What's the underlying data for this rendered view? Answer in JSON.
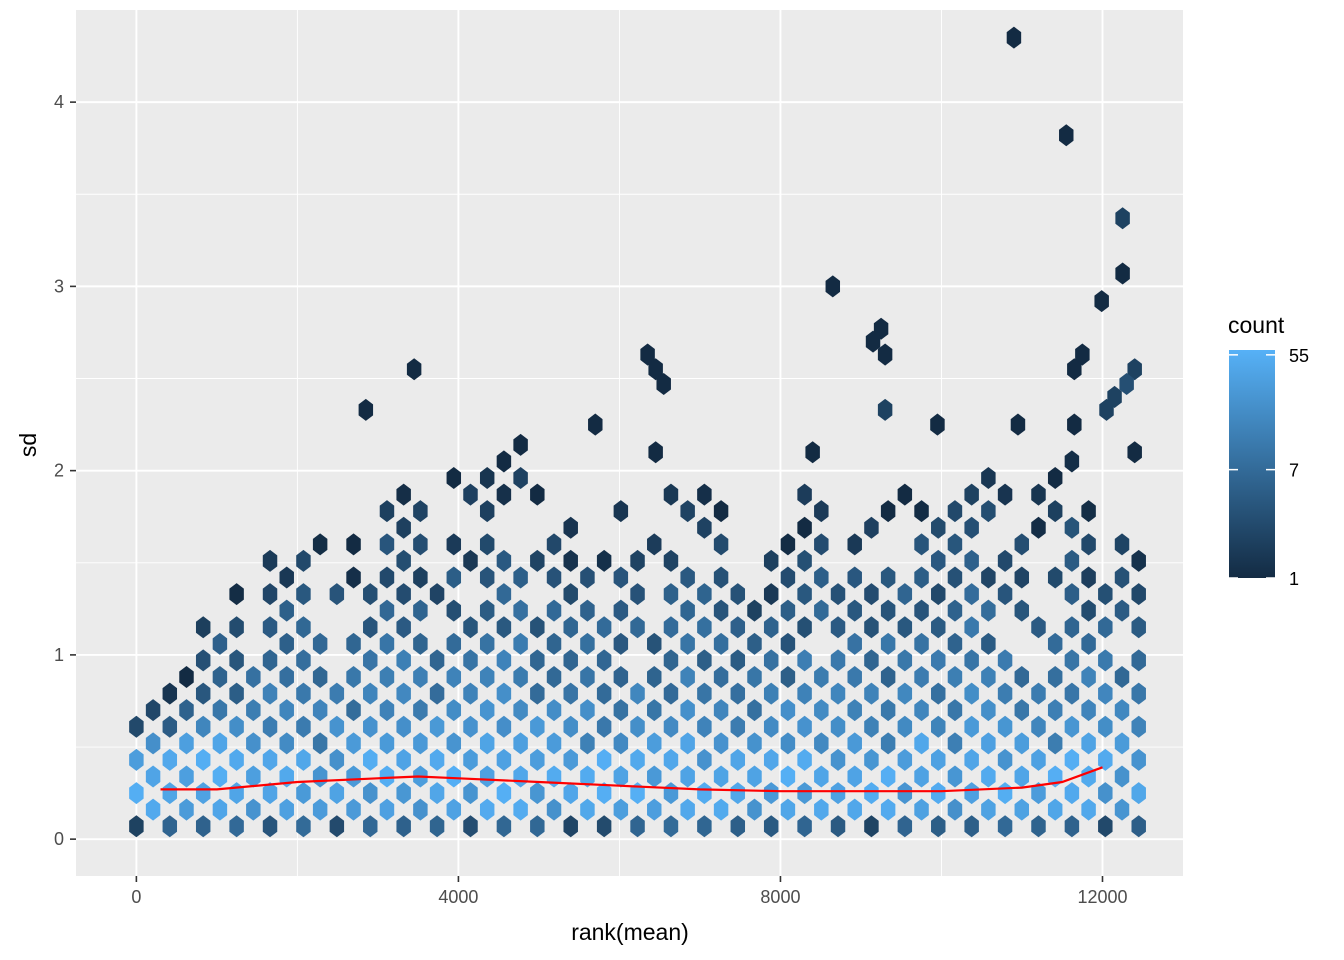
{
  "chart_data": {
    "type": "hexbin",
    "xlabel": "rank(mean)",
    "ylabel": "sd",
    "xlim": [
      -750,
      13000
    ],
    "ylim": [
      -0.2,
      4.5
    ],
    "x_ticks": [
      0,
      4000,
      8000,
      12000
    ],
    "y_ticks": [
      0,
      1,
      2,
      3,
      4
    ],
    "grid": true,
    "legend": {
      "title": "count",
      "placement": "right",
      "ticks": [
        {
          "value": 1,
          "label": "1"
        },
        {
          "value": 7,
          "label": "7"
        },
        {
          "value": 55,
          "label": "55"
        }
      ],
      "scale": "log",
      "range": [
        1,
        60
      ],
      "color_low": "#132B43",
      "color_high": "#56B1F7"
    },
    "trend_line": {
      "color": "#FF0000",
      "points": [
        [
          300,
          0.27
        ],
        [
          1000,
          0.27
        ],
        [
          2000,
          0.31
        ],
        [
          3000,
          0.33
        ],
        [
          3500,
          0.34
        ],
        [
          4000,
          0.33
        ],
        [
          5000,
          0.31
        ],
        [
          6000,
          0.29
        ],
        [
          7000,
          0.27
        ],
        [
          8000,
          0.26
        ],
        [
          9000,
          0.26
        ],
        [
          10000,
          0.26
        ],
        [
          11000,
          0.28
        ],
        [
          11500,
          0.31
        ],
        [
          12000,
          0.39
        ]
      ]
    },
    "outlier_bins": [
      {
        "x": 10900,
        "y": 4.35,
        "count": 1
      },
      {
        "x": 11550,
        "y": 3.82,
        "count": 1
      },
      {
        "x": 12250,
        "y": 3.37,
        "count": 2
      },
      {
        "x": 12250,
        "y": 3.07,
        "count": 1
      },
      {
        "x": 8650,
        "y": 3.0,
        "count": 1
      },
      {
        "x": 11990,
        "y": 2.92,
        "count": 1
      },
      {
        "x": 9250,
        "y": 2.77,
        "count": 1
      },
      {
        "x": 9150,
        "y": 2.7,
        "count": 1
      },
      {
        "x": 9300,
        "y": 2.63,
        "count": 1
      },
      {
        "x": 11750,
        "y": 2.63,
        "count": 1
      },
      {
        "x": 6350,
        "y": 2.63,
        "count": 1
      },
      {
        "x": 6450,
        "y": 2.55,
        "count": 1
      },
      {
        "x": 6550,
        "y": 2.47,
        "count": 1
      },
      {
        "x": 3450,
        "y": 2.55,
        "count": 1
      },
      {
        "x": 11650,
        "y": 2.55,
        "count": 1
      },
      {
        "x": 12400,
        "y": 2.55,
        "count": 2
      },
      {
        "x": 12300,
        "y": 2.47,
        "count": 3
      },
      {
        "x": 12150,
        "y": 2.4,
        "count": 2
      },
      {
        "x": 12050,
        "y": 2.33,
        "count": 2
      },
      {
        "x": 9300,
        "y": 2.33,
        "count": 2
      },
      {
        "x": 2850,
        "y": 2.33,
        "count": 1
      },
      {
        "x": 5700,
        "y": 2.25,
        "count": 1
      },
      {
        "x": 9950,
        "y": 2.25,
        "count": 1
      },
      {
        "x": 10950,
        "y": 2.25,
        "count": 1
      },
      {
        "x": 11650,
        "y": 2.25,
        "count": 1
      },
      {
        "x": 8400,
        "y": 2.1,
        "count": 1
      },
      {
        "x": 6450,
        "y": 2.1,
        "count": 1
      },
      {
        "x": 12400,
        "y": 2.1,
        "count": 1
      }
    ],
    "dense_region": {
      "x_range": [
        0,
        12450
      ],
      "y_min": 0.07,
      "core_y": 0.3,
      "upper_envelope": [
        [
          0,
          0.77
        ],
        [
          500,
          0.8
        ],
        [
          1000,
          1.5
        ],
        [
          1500,
          1.42
        ],
        [
          1800,
          1.8
        ],
        [
          2400,
          1.65
        ],
        [
          2900,
          1.65
        ],
        [
          3100,
          2.02
        ],
        [
          3500,
          1.95
        ],
        [
          3900,
          2.02
        ],
        [
          4400,
          2.0
        ],
        [
          4700,
          2.17
        ],
        [
          5200,
          1.9
        ],
        [
          5600,
          1.8
        ],
        [
          6000,
          1.87
        ],
        [
          6500,
          1.87
        ],
        [
          7000,
          2.02
        ],
        [
          7500,
          1.72
        ],
        [
          8000,
          1.65
        ],
        [
          8400,
          2.02
        ],
        [
          8800,
          1.8
        ],
        [
          9300,
          1.87
        ],
        [
          9800,
          2.02
        ],
        [
          10200,
          2.17
        ],
        [
          10700,
          2.1
        ],
        [
          11100,
          1.87
        ],
        [
          11600,
          2.2
        ],
        [
          12000,
          1.87
        ],
        [
          12450,
          1.65
        ]
      ]
    }
  }
}
